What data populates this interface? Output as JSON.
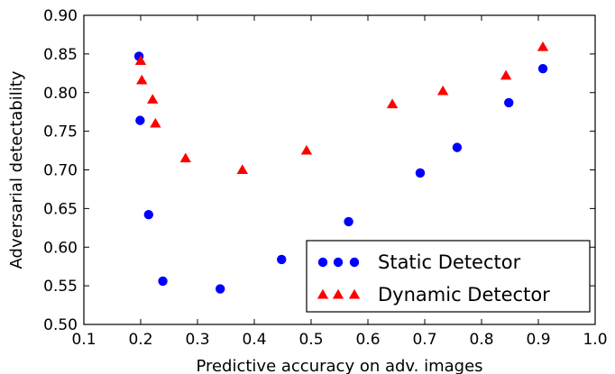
{
  "chart_data": {
    "type": "scatter",
    "xlabel": "Predictive accuracy on adv. images",
    "ylabel": "Adversarial detectability",
    "xlim": [
      0.1,
      1.0
    ],
    "ylim": [
      0.5,
      0.9
    ],
    "xticks": [
      "0.1",
      "0.2",
      "0.3",
      "0.4",
      "0.5",
      "0.6",
      "0.7",
      "0.8",
      "0.9",
      "1.0"
    ],
    "yticks": [
      "0.50",
      "0.55",
      "0.60",
      "0.65",
      "0.70",
      "0.75",
      "0.80",
      "0.85",
      "0.90"
    ],
    "grid": false,
    "legend_position": "lower-right",
    "series": [
      {
        "name": "Static Detector",
        "marker": "circle",
        "color": "#0000ff",
        "points": [
          [
            0.197,
            0.847
          ],
          [
            0.199,
            0.764
          ],
          [
            0.214,
            0.642
          ],
          [
            0.239,
            0.556
          ],
          [
            0.34,
            0.546
          ],
          [
            0.448,
            0.584
          ],
          [
            0.566,
            0.633
          ],
          [
            0.692,
            0.696
          ],
          [
            0.757,
            0.729
          ],
          [
            0.848,
            0.787
          ],
          [
            0.908,
            0.831
          ]
        ]
      },
      {
        "name": "Dynamic Detector",
        "marker": "triangle",
        "color": "#ff0000",
        "points": [
          [
            0.2,
            0.841
          ],
          [
            0.202,
            0.816
          ],
          [
            0.221,
            0.791
          ],
          [
            0.226,
            0.76
          ],
          [
            0.279,
            0.715
          ],
          [
            0.379,
            0.7
          ],
          [
            0.492,
            0.725
          ],
          [
            0.643,
            0.785
          ],
          [
            0.732,
            0.802
          ],
          [
            0.843,
            0.822
          ],
          [
            0.908,
            0.859
          ]
        ]
      }
    ]
  }
}
